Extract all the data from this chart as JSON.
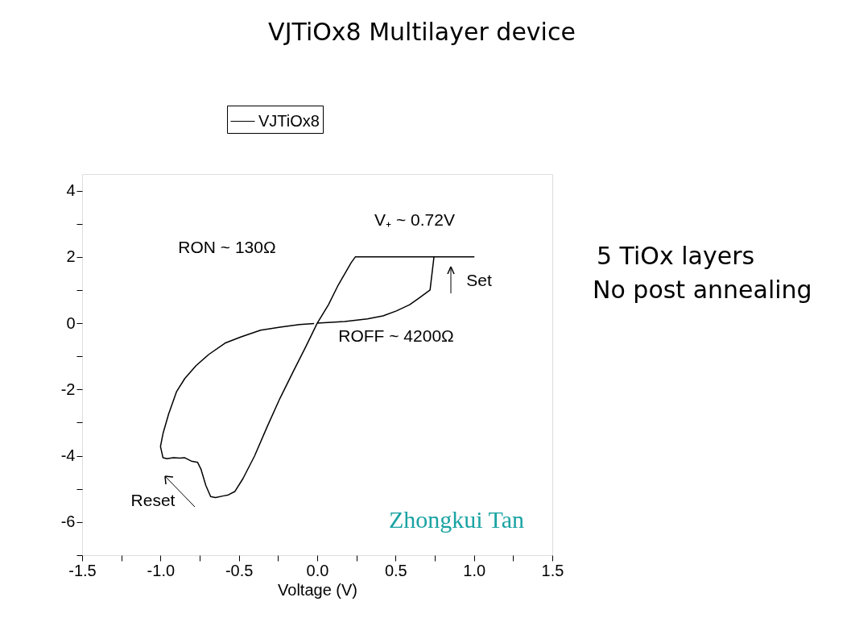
{
  "chart_data": {
    "type": "line",
    "title": "VJTiOx8 Multilayer device",
    "xlabel": "Voltage (V)",
    "x": [
      0,
      0.175,
      0.32,
      0.42,
      0.505,
      0.59,
      0.65,
      0.72,
      0.745,
      1.0,
      0.243,
      0.217,
      0.134,
      0.072,
      0,
      -0.072,
      -0.155,
      -0.237,
      -0.32,
      -0.4,
      -0.474,
      -0.526,
      -0.567,
      -0.598,
      -0.649,
      -0.68,
      -0.711,
      -0.742,
      -0.763,
      -0.804,
      -0.845,
      -0.876,
      -0.918,
      -0.959,
      -0.984,
      -1.0,
      -0.984,
      -0.948,
      -0.897,
      -0.845,
      -0.773,
      -0.691,
      -0.588,
      -0.485,
      -0.361,
      -0.237,
      -0.113,
      -0.02
    ],
    "series": [
      {
        "name": "VJTiOx8",
        "color": "#000000",
        "values": [
          0,
          0.05,
          0.13,
          0.22,
          0.37,
          0.56,
          0.76,
          1.0,
          2.0,
          2.0,
          2.0,
          1.83,
          1.15,
          0.56,
          0,
          -0.7,
          -1.48,
          -2.26,
          -3.13,
          -4.01,
          -4.69,
          -5.08,
          -5.18,
          -5.21,
          -5.26,
          -5.23,
          -4.89,
          -4.4,
          -4.2,
          -4.16,
          -4.06,
          -4.07,
          -4.06,
          -4.09,
          -4.06,
          -3.72,
          -3.33,
          -2.74,
          -2.06,
          -1.67,
          -1.28,
          -0.94,
          -0.6,
          -0.41,
          -0.21,
          -0.12,
          -0.04,
          -0.01
        ]
      }
    ],
    "xlim": [
      -1.5,
      1.5
    ],
    "ylim": [
      -7,
      4.5
    ],
    "xticks": [
      -1.5,
      {
        "value": -1.25,
        "label": null
      },
      {
        "value": -1,
        "label": "-1.0"
      },
      {
        "value": -0.75,
        "label": null
      },
      -0.5,
      {
        "value": -0.25,
        "label": null
      },
      {
        "value": 0,
        "label": "0.0"
      },
      {
        "value": 0.25,
        "label": null
      },
      0.5,
      {
        "value": 0.75,
        "label": null
      },
      {
        "value": 1,
        "label": "1.0"
      },
      {
        "value": 1.25,
        "label": null
      },
      1.5
    ],
    "yticks": [
      {
        "value": -7,
        "label": null
      },
      -6,
      {
        "value": -5,
        "label": null
      },
      -4,
      {
        "value": -3,
        "label": null
      },
      -2,
      {
        "value": -1,
        "label": null
      },
      0,
      {
        "value": 1,
        "label": null
      },
      2,
      {
        "value": 3,
        "label": null
      },
      4
    ],
    "grid": false,
    "legend": "top",
    "marker": "none",
    "line_style": "solid",
    "annotations": [
      "RON ~ 130Ω",
      "V₊ ~ 0.72V",
      "ROFF ~ 4200Ω",
      "Set",
      "Reset",
      "Zhongkui Tan",
      "5 TiOx layers",
      "No post annealing"
    ]
  }
}
